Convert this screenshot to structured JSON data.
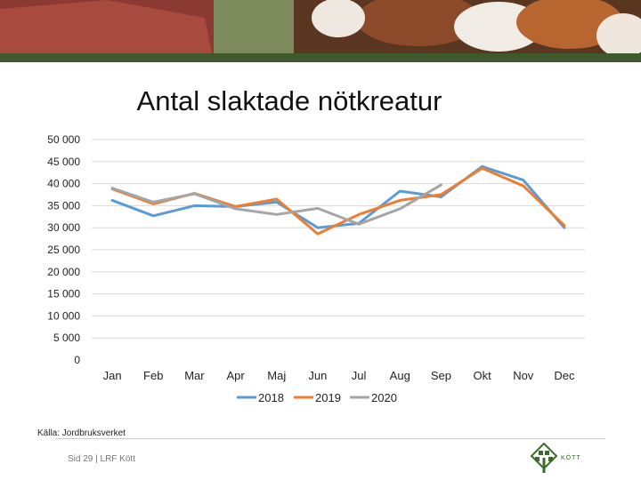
{
  "slide": {
    "title": "Antal slaktade nötkreatur",
    "source": "Källa: Jordbruksverket",
    "page_label": "Sid 29 | LRF Kött",
    "logo_text": "KÖTT"
  },
  "colors": {
    "banner_green": "#3f5a2a",
    "grid": "#d9d9d9",
    "logo_green": "#3a6b2a"
  },
  "chart_data": {
    "type": "line",
    "title": "Antal slaktade nötkreatur",
    "xlabel": "",
    "ylabel": "",
    "ylim": [
      0,
      50000
    ],
    "grid": true,
    "legend_position": "bottom",
    "y_tick_labels": [
      "0",
      "5 000",
      "10 000",
      "15 000",
      "20 000",
      "25 000",
      "30 000",
      "35 000",
      "40 000",
      "45 000",
      "50 000"
    ],
    "categories": [
      "Jan",
      "Feb",
      "Mar",
      "Apr",
      "Maj",
      "Jun",
      "Jul",
      "Aug",
      "Sep",
      "Okt",
      "Nov",
      "Dec"
    ],
    "series": [
      {
        "name": "2018",
        "color": "#5b9bd5",
        "values": [
          36200,
          32700,
          35000,
          34800,
          35800,
          30000,
          31000,
          38300,
          37000,
          43900,
          40800,
          30000
        ]
      },
      {
        "name": "2019",
        "color": "#ed7d31",
        "values": [
          38800,
          35400,
          37800,
          34800,
          36500,
          28600,
          33000,
          36200,
          37500,
          43500,
          39500,
          30500
        ]
      },
      {
        "name": "2020",
        "color": "#a5a5a5",
        "values": [
          39000,
          35800,
          37700,
          34300,
          33000,
          34400,
          30800,
          34300,
          39700,
          null,
          null,
          null
        ]
      }
    ]
  }
}
